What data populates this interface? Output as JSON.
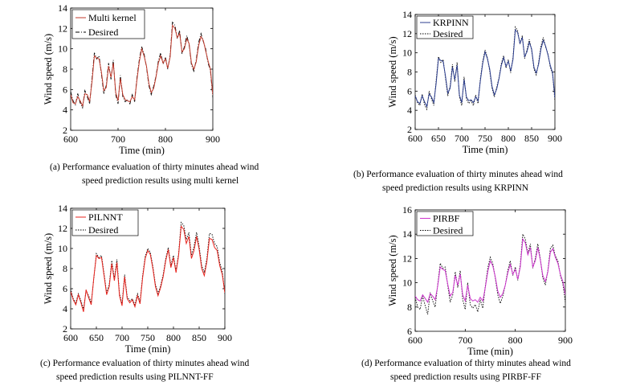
{
  "panels": [
    {
      "caption": [
        "(a) Performance evaluation of thirty minutes ahead wind",
        "speed prediction results using multi kernel"
      ]
    },
    {
      "caption": [
        "(b) Performance evaluation of thirty minutes ahead wind",
        "speed prediction results using KRPINN"
      ]
    },
    {
      "caption": [
        "(c) Performance evaluation of thirty minutes ahead wind",
        "speed prediction results using PILNNT-FF"
      ]
    },
    {
      "caption": [
        "(d) Performance evaluation of thirty minutes ahead wind",
        "speed prediction results using PIRBF-FF"
      ]
    }
  ],
  "chart_data": [
    {
      "type": "line",
      "xlabel": "Time (min)",
      "ylabel": "Wind speed (m/s)",
      "xlim": [
        600,
        900
      ],
      "ylim": [
        2,
        14
      ],
      "xticks": [
        600,
        700,
        800,
        900
      ],
      "yticks": [
        2,
        4,
        6,
        8,
        10,
        12,
        14
      ],
      "legend": "top-left",
      "series": [
        {
          "name": "Multi kernel",
          "color": "#c0392b",
          "style": "solid"
        },
        {
          "name": "Desired",
          "color": "#000000",
          "style": "dashdot"
        }
      ],
      "x": [
        600,
        605,
        610,
        615,
        620,
        625,
        630,
        635,
        640,
        645,
        650,
        655,
        660,
        665,
        670,
        675,
        680,
        685,
        690,
        695,
        700,
        705,
        710,
        715,
        720,
        725,
        730,
        735,
        740,
        745,
        750,
        755,
        760,
        765,
        770,
        775,
        780,
        785,
        790,
        795,
        800,
        805,
        810,
        815,
        820,
        825,
        830,
        835,
        840,
        845,
        850,
        855,
        860,
        865,
        870,
        875,
        880,
        885,
        890,
        895,
        900
      ],
      "desired": [
        5.8,
        4.9,
        4.5,
        5.6,
        4.7,
        4.2,
        5.9,
        5.3,
        4.6,
        7.0,
        9.6,
        9.0,
        9.3,
        7.5,
        5.6,
        6.4,
        8.6,
        7.0,
        8.9,
        5.5,
        4.6,
        7.4,
        5.3,
        4.8,
        5.0,
        4.6,
        5.5,
        4.8,
        7.2,
        9.0,
        10.2,
        9.5,
        8.2,
        6.4,
        5.5,
        6.3,
        7.3,
        8.8,
        9.6,
        8.5,
        9.2,
        8.0,
        9.4,
        12.6,
        12.3,
        11.0,
        11.8,
        9.5,
        10.2,
        11.3,
        10.4,
        8.4,
        7.8,
        8.9,
        10.6,
        11.5,
        10.7,
        10.0,
        8.6,
        7.9,
        5.2
      ],
      "predicted": [
        5.5,
        4.7,
        4.6,
        5.3,
        4.9,
        4.4,
        5.6,
        5.5,
        4.8,
        6.7,
        9.3,
        9.1,
        9.0,
        7.7,
        5.9,
        6.2,
        8.3,
        7.2,
        8.6,
        5.7,
        4.9,
        7.1,
        5.5,
        5.0,
        4.9,
        4.8,
        5.3,
        5.0,
        7.0,
        8.8,
        10.0,
        9.3,
        8.3,
        6.6,
        5.7,
        6.1,
        7.2,
        8.6,
        9.3,
        8.6,
        9.0,
        8.1,
        9.2,
        12.3,
        12.0,
        11.1,
        11.5,
        9.7,
        10.0,
        11.0,
        10.5,
        8.6,
        8.0,
        8.7,
        10.3,
        11.2,
        10.8,
        9.8,
        8.8,
        8.0,
        5.5
      ]
    },
    {
      "type": "line",
      "xlabel": "Time (min)",
      "ylabel": "Wind speed (m/s)",
      "xlim": [
        600,
        900
      ],
      "ylim": [
        2,
        14
      ],
      "xticks": [
        600,
        650,
        700,
        750,
        800,
        850,
        900
      ],
      "yticks": [
        2,
        4,
        6,
        8,
        10,
        12,
        14
      ],
      "legend": "top-left",
      "series": [
        {
          "name": "KRPINN",
          "color": "#2c3e8f",
          "style": "solid"
        },
        {
          "name": "Desired",
          "color": "#000000",
          "style": "dotted"
        }
      ],
      "x": [
        600,
        605,
        610,
        615,
        620,
        625,
        630,
        635,
        640,
        645,
        650,
        655,
        660,
        665,
        670,
        675,
        680,
        685,
        690,
        695,
        700,
        705,
        710,
        715,
        720,
        725,
        730,
        735,
        740,
        745,
        750,
        755,
        760,
        765,
        770,
        775,
        780,
        785,
        790,
        795,
        800,
        805,
        810,
        815,
        820,
        825,
        830,
        835,
        840,
        845,
        850,
        855,
        860,
        865,
        870,
        875,
        880,
        885,
        890,
        895,
        900
      ],
      "desired": [
        5.6,
        4.8,
        4.5,
        5.7,
        4.6,
        4.1,
        6.0,
        5.2,
        4.5,
        7.1,
        9.6,
        9.0,
        9.3,
        7.4,
        5.5,
        6.5,
        8.8,
        7.0,
        9.0,
        5.4,
        4.5,
        7.5,
        5.2,
        4.7,
        5.0,
        4.5,
        5.6,
        4.7,
        7.3,
        9.1,
        10.3,
        9.5,
        8.1,
        6.3,
        5.4,
        6.4,
        7.4,
        8.9,
        9.7,
        8.4,
        9.3,
        7.9,
        9.5,
        12.7,
        12.3,
        10.9,
        11.8,
        9.4,
        10.3,
        11.4,
        10.3,
        8.3,
        7.7,
        9.0,
        10.7,
        11.6,
        10.6,
        9.9,
        8.5,
        7.8,
        5.0
      ],
      "predicted": [
        5.5,
        4.9,
        4.7,
        5.5,
        4.9,
        4.4,
        5.7,
        5.4,
        4.8,
        6.8,
        9.4,
        9.2,
        9.1,
        7.6,
        5.8,
        6.3,
        8.5,
        7.2,
        8.7,
        5.6,
        4.8,
        7.2,
        5.4,
        5.0,
        5.1,
        4.8,
        5.4,
        5.0,
        7.1,
        8.9,
        10.1,
        9.4,
        8.3,
        6.5,
        5.6,
        6.2,
        7.3,
        8.7,
        9.5,
        8.6,
        9.1,
        8.1,
        9.3,
        12.4,
        12.1,
        11.0,
        11.6,
        9.6,
        10.1,
        11.1,
        10.4,
        8.5,
        7.9,
        8.8,
        10.4,
        11.3,
        10.7,
        9.8,
        8.7,
        7.9,
        5.3
      ]
    },
    {
      "type": "line",
      "xlabel": "Time (min)",
      "ylabel": "Wind speed (m/s)",
      "xlim": [
        600,
        900
      ],
      "ylim": [
        2,
        14
      ],
      "xticks": [
        600,
        650,
        700,
        750,
        800,
        850,
        900
      ],
      "yticks": [
        2,
        4,
        6,
        8,
        10,
        12,
        14
      ],
      "legend": "top-left",
      "series": [
        {
          "name": "PILNNT",
          "color": "#e8231d",
          "style": "solid"
        },
        {
          "name": "Desired",
          "color": "#000000",
          "style": "dotted"
        }
      ],
      "x": [
        600,
        605,
        610,
        615,
        620,
        625,
        630,
        635,
        640,
        645,
        650,
        655,
        660,
        665,
        670,
        675,
        680,
        685,
        690,
        695,
        700,
        705,
        710,
        715,
        720,
        725,
        730,
        735,
        740,
        745,
        750,
        755,
        760,
        765,
        770,
        775,
        780,
        785,
        790,
        795,
        800,
        805,
        810,
        815,
        820,
        825,
        830,
        835,
        840,
        845,
        850,
        855,
        860,
        865,
        870,
        875,
        880,
        885,
        890,
        895,
        900
      ],
      "desired": [
        6.0,
        5.0,
        4.6,
        5.5,
        4.8,
        4.0,
        5.8,
        5.3,
        4.6,
        7.0,
        9.5,
        9.1,
        9.3,
        7.5,
        5.6,
        6.4,
        8.8,
        7.0,
        8.9,
        5.5,
        4.5,
        7.4,
        5.2,
        4.8,
        5.0,
        4.4,
        5.5,
        4.7,
        7.3,
        9.2,
        10.0,
        9.6,
        8.2,
        6.4,
        5.5,
        6.3,
        7.4,
        9.0,
        10.1,
        8.3,
        9.3,
        7.8,
        9.5,
        12.6,
        12.3,
        10.9,
        11.6,
        9.3,
        10.2,
        11.6,
        10.2,
        8.3,
        7.6,
        9.0,
        11.5,
        11.4,
        10.5,
        10.2,
        8.6,
        7.7,
        5.5
      ],
      "predicted": [
        5.7,
        4.9,
        4.4,
        5.4,
        4.6,
        3.7,
        5.9,
        5.1,
        4.4,
        7.1,
        9.3,
        9.0,
        9.1,
        7.3,
        5.4,
        6.2,
        8.5,
        6.8,
        8.6,
        5.3,
        4.3,
        7.2,
        5.0,
        4.6,
        4.9,
        4.2,
        5.3,
        4.5,
        7.1,
        9.0,
        9.8,
        9.4,
        8.0,
        6.2,
        5.3,
        6.1,
        7.2,
        8.8,
        9.9,
        8.1,
        9.1,
        7.6,
        9.3,
        12.2,
        11.9,
        10.5,
        11.2,
        9.0,
        9.8,
        11.2,
        9.9,
        8.0,
        7.3,
        8.7,
        11.0,
        10.9,
        10.1,
        9.8,
        8.3,
        7.4,
        5.6
      ]
    },
    {
      "type": "line",
      "xlabel": "Time (min)",
      "ylabel": "Wind speed (m/s)",
      "xlim": [
        600,
        900
      ],
      "ylim": [
        6,
        16
      ],
      "xticks": [
        600,
        700,
        800,
        900
      ],
      "yticks": [
        6,
        8,
        10,
        12,
        14,
        16
      ],
      "legend": "top-left",
      "series": [
        {
          "name": "PIRBF",
          "color": "#cc33cc",
          "style": "solid"
        },
        {
          "name": "Desired",
          "color": "#000000",
          "style": "dotted"
        }
      ],
      "x": [
        600,
        605,
        610,
        615,
        620,
        625,
        630,
        635,
        640,
        645,
        650,
        655,
        660,
        665,
        670,
        675,
        680,
        685,
        690,
        695,
        700,
        705,
        710,
        715,
        720,
        725,
        730,
        735,
        740,
        745,
        750,
        755,
        760,
        765,
        770,
        775,
        780,
        785,
        790,
        795,
        800,
        805,
        810,
        815,
        820,
        825,
        830,
        835,
        840,
        845,
        850,
        855,
        860,
        865,
        870,
        875,
        880,
        885,
        890,
        895,
        900
      ],
      "desired": [
        8.8,
        8.0,
        7.8,
        8.9,
        8.1,
        7.4,
        9.2,
        8.5,
        8.0,
        9.8,
        11.6,
        11.2,
        11.3,
        9.8,
        8.4,
        9.0,
        10.9,
        9.6,
        11.0,
        8.6,
        7.8,
        10.0,
        8.2,
        7.9,
        8.2,
        7.6,
        8.6,
        7.9,
        9.7,
        11.2,
        12.1,
        11.6,
        10.4,
        9.0,
        8.3,
        8.9,
        9.8,
        11.0,
        11.8,
        10.6,
        11.3,
        10.2,
        11.5,
        14.0,
        13.6,
        12.4,
        13.2,
        11.2,
        12.0,
        13.2,
        12.0,
        10.4,
        9.8,
        11.0,
        12.8,
        13.1,
        12.2,
        11.8,
        10.6,
        9.9,
        8.4
      ],
      "predicted": [
        8.9,
        8.6,
        8.5,
        9.0,
        8.7,
        8.4,
        9.1,
        8.9,
        8.6,
        9.7,
        11.3,
        11.1,
        11.0,
        9.9,
        8.9,
        9.2,
        10.6,
        9.8,
        10.7,
        9.0,
        8.5,
        9.8,
        8.7,
        8.5,
        8.6,
        8.4,
        8.8,
        8.5,
        9.6,
        10.9,
        11.8,
        11.4,
        10.5,
        9.3,
        8.8,
        9.1,
        9.8,
        10.8,
        11.5,
        10.7,
        11.1,
        10.3,
        11.3,
        13.6,
        13.3,
        12.3,
        12.9,
        11.3,
        11.8,
        12.9,
        11.9,
        10.6,
        10.1,
        10.9,
        12.5,
        12.8,
        12.1,
        11.6,
        10.7,
        10.1,
        9.0
      ]
    }
  ]
}
